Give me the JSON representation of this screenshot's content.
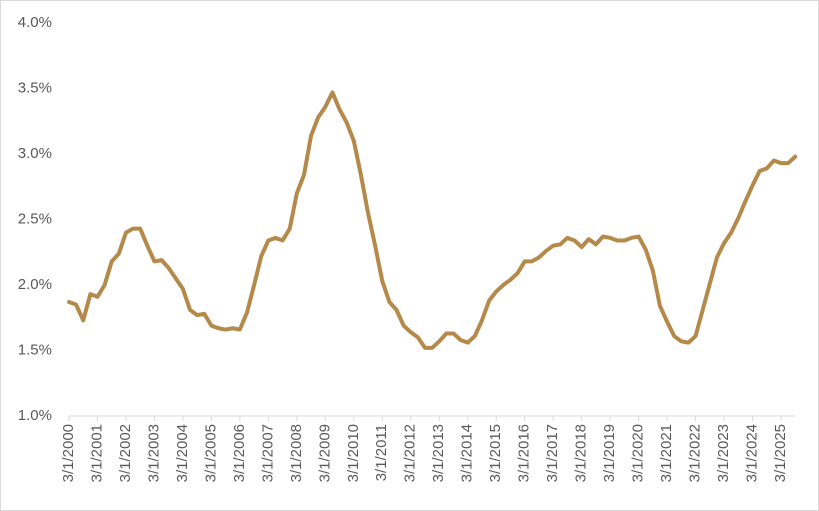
{
  "chart_data": {
    "type": "line",
    "categories": [
      "3/1/2000",
      null,
      null,
      null,
      "3/1/2001",
      null,
      null,
      null,
      "3/1/2002",
      null,
      null,
      null,
      "3/1/2003",
      null,
      null,
      null,
      "3/1/2004",
      null,
      null,
      null,
      "3/1/2005",
      null,
      null,
      null,
      "3/1/2006",
      null,
      null,
      null,
      "3/1/2007",
      null,
      null,
      null,
      "3/1/2008",
      null,
      null,
      null,
      "3/1/2009",
      null,
      null,
      null,
      "3/1/2010",
      null,
      null,
      null,
      "3/1/2011",
      null,
      null,
      null,
      "3/1/2012",
      null,
      null,
      null,
      "3/1/2013",
      null,
      null,
      null,
      "3/1/2014",
      null,
      null,
      null,
      "3/1/2015",
      null,
      null,
      null,
      "3/1/2016",
      null,
      null,
      null,
      "3/1/2017",
      null,
      null,
      null,
      "3/1/2018",
      null,
      null,
      null,
      "3/1/2019",
      null,
      null,
      null,
      "3/1/2020",
      null,
      null,
      null,
      "3/1/2021",
      null,
      null,
      null,
      "3/1/2022",
      null,
      null,
      null,
      "3/1/2023",
      null,
      null,
      null,
      "3/1/2024",
      null,
      null,
      null,
      "3/1/2025",
      null,
      null
    ],
    "values": [
      1.87,
      1.85,
      1.73,
      1.93,
      1.91,
      2.0,
      2.18,
      2.24,
      2.4,
      2.43,
      2.43,
      2.3,
      2.18,
      2.19,
      2.13,
      2.05,
      1.97,
      1.81,
      1.77,
      1.78,
      1.69,
      1.67,
      1.66,
      1.67,
      1.66,
      1.79,
      2.0,
      2.22,
      2.34,
      2.36,
      2.34,
      2.43,
      2.7,
      2.84,
      3.14,
      3.28,
      3.36,
      3.47,
      3.34,
      3.24,
      3.1,
      2.84,
      2.55,
      2.3,
      2.03,
      1.87,
      1.81,
      1.69,
      1.64,
      1.6,
      1.52,
      1.52,
      1.57,
      1.63,
      1.63,
      1.58,
      1.56,
      1.61,
      1.73,
      1.88,
      1.95,
      2.0,
      2.04,
      2.09,
      2.18,
      2.18,
      2.21,
      2.26,
      2.3,
      2.31,
      2.36,
      2.34,
      2.29,
      2.35,
      2.31,
      2.37,
      2.36,
      2.34,
      2.34,
      2.36,
      2.37,
      2.27,
      2.11,
      1.84,
      1.72,
      1.61,
      1.57,
      1.56,
      1.61,
      1.81,
      2.01,
      2.21,
      2.32,
      2.4,
      2.51,
      2.64,
      2.76,
      2.87,
      2.89,
      2.95,
      2.93,
      2.93,
      2.98
    ],
    "color": "#b5894a",
    "ylim": [
      1.0,
      4.0
    ],
    "yticks": [
      {
        "value": 1.0,
        "label": "1.0%"
      },
      {
        "value": 1.5,
        "label": "1.5%"
      },
      {
        "value": 2.0,
        "label": "2.0%"
      },
      {
        "value": 2.5,
        "label": "2.5%"
      },
      {
        "value": 3.0,
        "label": "3.0%"
      },
      {
        "value": 3.5,
        "label": "3.5%"
      },
      {
        "value": 4.0,
        "label": "4.0%"
      }
    ],
    "grid": false
  }
}
